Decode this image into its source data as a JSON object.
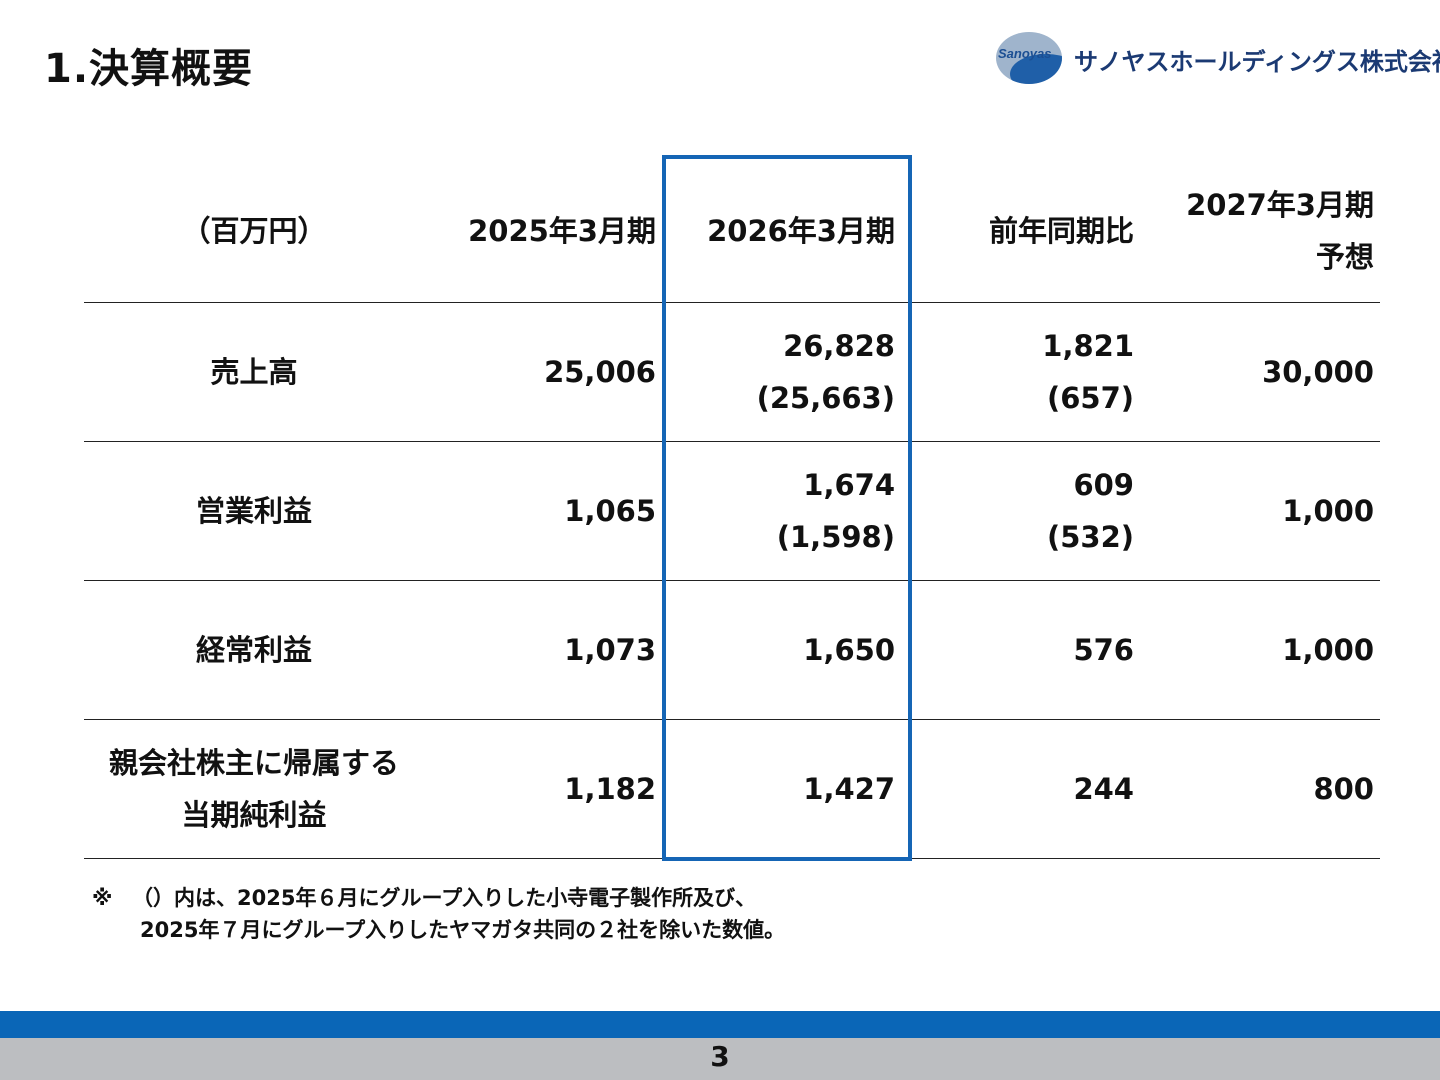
{
  "header": {
    "title": "1.決算概要",
    "logo_mark": "Sanoyas",
    "company_name": "サノヤスホールディングス株式会社"
  },
  "table": {
    "columns": [
      "（百万円）",
      "2025年3月期",
      "2026年3月期",
      "前年同期比",
      "2027年3月期",
      "予想"
    ],
    "rows": [
      {
        "label_1": "売上高",
        "label_2": "",
        "fy2025": "25,006",
        "fy2026": "26,828",
        "fy2026_sub": "(25,663)",
        "yoy": "1,821",
        "yoy_sub": "(657)",
        "fy2027": "30,000"
      },
      {
        "label_1": "営業利益",
        "label_2": "",
        "fy2025": "1,065",
        "fy2026": "1,674",
        "fy2026_sub": "(1,598)",
        "yoy": "609",
        "yoy_sub": "(532)",
        "fy2027": "1,000"
      },
      {
        "label_1": "経常利益",
        "label_2": "",
        "fy2025": "1,073",
        "fy2026": "1,650",
        "fy2026_sub": "",
        "yoy": "576",
        "yoy_sub": "",
        "fy2027": "1,000"
      },
      {
        "label_1": "親会社株主に帰属する",
        "label_2": "当期純利益",
        "fy2025": "1,182",
        "fy2026": "1,427",
        "fy2026_sub": "",
        "yoy": "244",
        "yoy_sub": "",
        "fy2027": "800"
      }
    ]
  },
  "note": {
    "symbol": "※",
    "line1": "（）内は、2025年６月にグループ入りした小寺電子製作所及び、",
    "line2": "2025年７月にグループ入りしたヤマガタ共同の２社を除いた数値。"
  },
  "footer": {
    "page_number": "3"
  },
  "colors": {
    "accent": "#1565b5",
    "footer_blue": "#0a66b7",
    "footer_gray": "#bcbec1"
  }
}
